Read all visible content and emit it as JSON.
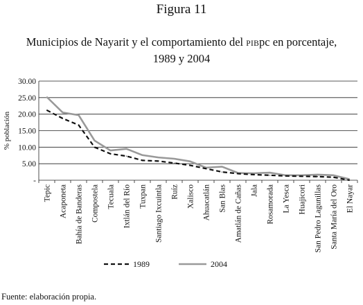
{
  "figure_label": "Figura 11",
  "title": {
    "line1_prefix": "Municipios de Nayarit y el comportamiento del ",
    "line1_smallcaps": "PIB",
    "line1_suffix": "pc en porcentaje,",
    "line2": "1989 y 2004"
  },
  "source": "Fuente: elaboración propia.",
  "chart_data": {
    "type": "line",
    "ylabel": "% población",
    "xlabel": "",
    "ylim": [
      0,
      30
    ],
    "yticks": [
      0,
      5,
      10,
      15,
      20,
      25,
      30
    ],
    "ytick_labels": [
      "-",
      "5.00",
      "10.00",
      "15.00",
      "20.00",
      "25.00",
      "30.00"
    ],
    "grid": true,
    "legend_position": "bottom",
    "categories": [
      "Tepic",
      "Acaponeta",
      "Bahía de Banderas",
      "Compostela",
      "Tecuala",
      "Ixtlán del Río",
      "Tuxpan",
      "Santiago Ixcuintla",
      "Ruíz",
      "Xalisco",
      "Ahuacatlán",
      "San Blas",
      "Amatlán de Cañas",
      "Jala",
      "Rosamorada",
      "La Yesca",
      "Huajicori",
      "San Pedro Lagunillas",
      "Santa María del Oro",
      "El Nayar"
    ],
    "series": [
      {
        "name": "1989",
        "style": "dashed",
        "color": "#111111",
        "values": [
          21.2,
          18.7,
          16.7,
          10.0,
          8.0,
          7.3,
          6.0,
          5.8,
          5.2,
          4.5,
          3.5,
          2.5,
          2.0,
          1.7,
          1.5,
          1.3,
          1.2,
          1.1,
          0.9,
          0.0
        ]
      },
      {
        "name": "2004",
        "style": "solid",
        "color": "#999999",
        "values": [
          25.2,
          20.5,
          19.7,
          12.0,
          9.0,
          9.5,
          7.6,
          6.9,
          6.5,
          5.7,
          3.8,
          4.1,
          2.2,
          2.1,
          2.3,
          1.5,
          1.5,
          1.7,
          1.5,
          0.3
        ]
      }
    ]
  }
}
